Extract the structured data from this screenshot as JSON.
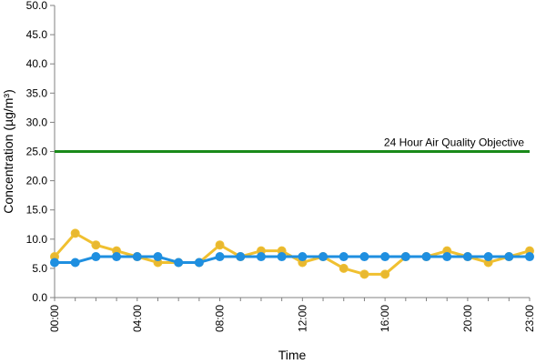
{
  "chart_data": {
    "type": "line",
    "xlabel": "Time",
    "ylabel": "Concentration (µg/m³)",
    "ylim": [
      0,
      50
    ],
    "yticks": [
      "0.0",
      "5.0",
      "10.0",
      "15.0",
      "20.0",
      "25.0",
      "30.0",
      "35.0",
      "40.0",
      "45.0",
      "50.0"
    ],
    "x": [
      "00:00",
      "01:00",
      "02:00",
      "03:00",
      "04:00",
      "05:00",
      "06:00",
      "07:00",
      "08:00",
      "09:00",
      "10:00",
      "11:00",
      "12:00",
      "13:00",
      "14:00",
      "15:00",
      "16:00",
      "17:00",
      "18:00",
      "19:00",
      "20:00",
      "21:00",
      "22:00",
      "23:00"
    ],
    "xtick_labels": [
      "00:00",
      "04:00",
      "08:00",
      "12:00",
      "16:00",
      "20:00",
      "23:00"
    ],
    "grid": false,
    "series": [
      {
        "color": "#f0c030",
        "marker_color": "#e8b830",
        "values": [
          7,
          11,
          9,
          8,
          7,
          6,
          6,
          6,
          9,
          7,
          8,
          8,
          6,
          7,
          5,
          4,
          4,
          7,
          7,
          8,
          7,
          6,
          7,
          8
        ]
      },
      {
        "color": "#1f8fe0",
        "marker_color": "#1f8fe0",
        "values": [
          6,
          6,
          7,
          7,
          7,
          7,
          6,
          6,
          7,
          7,
          7,
          7,
          7,
          7,
          7,
          7,
          7,
          7,
          7,
          7,
          7,
          7,
          7,
          7
        ]
      }
    ],
    "reference_line": {
      "label": "24 Hour Air Quality Objective",
      "value": 25,
      "color": "#1a8a1a"
    }
  }
}
